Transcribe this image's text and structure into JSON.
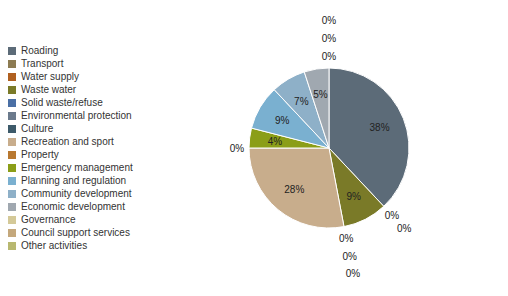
{
  "chart_data": {
    "type": "pie",
    "categories": [
      "Roading",
      "Transport",
      "Water supply",
      "Waste water",
      "Solid waste/refuse",
      "Environmental protection",
      "Culture",
      "Recreation and sport",
      "Property",
      "Emergency management",
      "Planning and regulation",
      "Community development",
      "Economic development",
      "Governance",
      "Council support services",
      "Other activities"
    ],
    "values": [
      38,
      0,
      0,
      9,
      0,
      0,
      0,
      28,
      0,
      4,
      9,
      7,
      5,
      0,
      0,
      0
    ],
    "value_labels": [
      "38%",
      "0%",
      "0%",
      "9%",
      "0%",
      "0%",
      "0%",
      "28%",
      "0%",
      "4%",
      "9%",
      "7%",
      "5%",
      "0%",
      "0%",
      "0%"
    ],
    "colors": [
      "#5C6B78",
      "#8C7B52",
      "#B06020",
      "#7A7A28",
      "#4A6FA5",
      "#6B7A8C",
      "#3D5A6A",
      "#C8AD8C",
      "#B87830",
      "#8B9E18",
      "#7AB0D0",
      "#8EB0C8",
      "#A0A8B0",
      "#D4C998",
      "#C4A87C",
      "#B8B870"
    ],
    "data_labels": true,
    "legend": "left"
  }
}
